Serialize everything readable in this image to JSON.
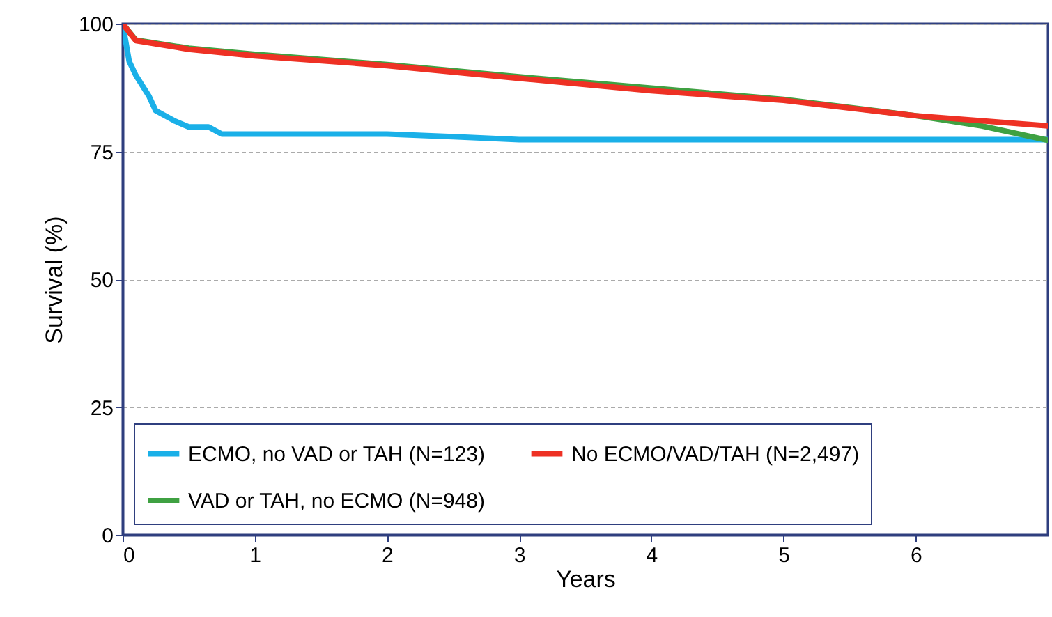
{
  "chart_data": {
    "type": "line",
    "xlabel": "Years",
    "ylabel": "Survival (%)",
    "xlim": [
      0,
      7
    ],
    "xticks": [
      0,
      1,
      2,
      3,
      4,
      5,
      6
    ],
    "ylim": [
      0,
      100
    ],
    "yticks": [
      0,
      25,
      50,
      75,
      100
    ],
    "grid": "y",
    "legend": "bottom left",
    "line_style": "solid",
    "series": [
      {
        "name": "ECMO, no VAD or TAH (N=123)",
        "color": "#1ab0e8",
        "x": [
          0,
          0.05,
          0.1,
          0.2,
          0.25,
          0.4,
          0.5,
          0.65,
          0.75,
          1.5,
          2,
          2.5,
          3,
          7
        ],
        "values": [
          100,
          92.6,
          89.9,
          85.8,
          83,
          80.9,
          79.8,
          79.8,
          78.4,
          78.4,
          78.4,
          77.9,
          77.3,
          77.3
        ]
      },
      {
        "name": "VAD or TAH, no ECMO  (N=948)",
        "color": "#3fa142",
        "x": [
          0,
          0.1,
          0.5,
          1,
          2,
          3,
          4,
          5,
          6,
          6.5,
          7
        ],
        "values": [
          100,
          96.8,
          95.2,
          94,
          92,
          89.6,
          87.4,
          85.2,
          82,
          80,
          77.2
        ]
      },
      {
        "name": "No ECMO/VAD/TAH (N=2,497)",
        "color": "#ee3124",
        "x": [
          0,
          0.1,
          0.5,
          1,
          2,
          3,
          4,
          5,
          6,
          7
        ],
        "values": [
          100,
          96.7,
          95,
          93.7,
          91.8,
          89.3,
          86.9,
          85,
          82,
          80
        ]
      }
    ]
  }
}
